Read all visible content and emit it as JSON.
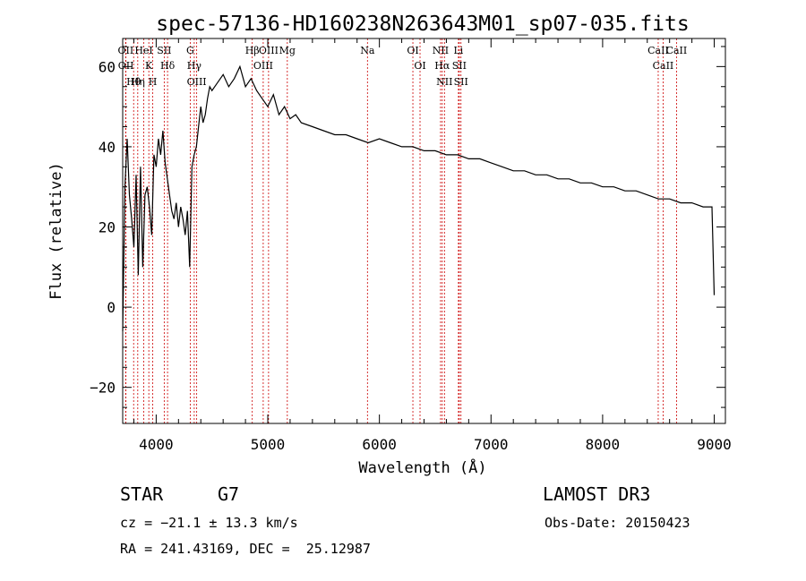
{
  "chart_data": {
    "type": "line",
    "title": "spec-57136-HD160238N263643M01_sp07-035.fits",
    "xlabel": "Wavelength (Å)",
    "ylabel": "Flux (relative)",
    "xlim": [
      3700,
      9100
    ],
    "ylim": [
      -29,
      67
    ],
    "x_ticks": [
      4000,
      5000,
      6000,
      7000,
      8000,
      9000
    ],
    "y_ticks": [
      -20,
      0,
      20,
      40,
      60
    ],
    "grid": false,
    "series_color": "#000000",
    "line_marker_color": "#cc0000",
    "series": [
      {
        "x": [
          3700,
          3720,
          3740,
          3760,
          3780,
          3800,
          3820,
          3840,
          3860,
          3880,
          3900,
          3920,
          3940,
          3960,
          3980,
          4000,
          4020,
          4040,
          4060,
          4080,
          4100,
          4120,
          4140,
          4160,
          4180,
          4200,
          4220,
          4240,
          4260,
          4280,
          4300,
          4320,
          4340,
          4360,
          4380,
          4400,
          4420,
          4440,
          4460,
          4480,
          4500,
          4550,
          4600,
          4650,
          4700,
          4750,
          4800,
          4850,
          4900,
          4950,
          5000,
          5050,
          5100,
          5150,
          5200,
          5250,
          5300,
          5400,
          5500,
          5600,
          5700,
          5800,
          5900,
          6000,
          6100,
          6200,
          6300,
          6400,
          6500,
          6600,
          6700,
          6800,
          6900,
          7000,
          7100,
          7200,
          7300,
          7400,
          7500,
          7600,
          7700,
          7800,
          7900,
          8000,
          8100,
          8200,
          8300,
          8400,
          8500,
          8600,
          8700,
          8800,
          8900,
          8980,
          9000
        ],
        "y": [
          -6,
          30,
          42,
          28,
          22,
          15,
          33,
          8,
          35,
          10,
          28,
          30,
          25,
          18,
          38,
          35,
          42,
          38,
          44,
          36,
          32,
          28,
          24,
          22,
          26,
          20,
          25,
          22,
          18,
          24,
          10,
          35,
          38,
          40,
          45,
          50,
          46,
          48,
          52,
          55,
          54,
          56,
          58,
          55,
          57,
          60,
          55,
          57,
          54,
          52,
          50,
          53,
          48,
          50,
          47,
          48,
          46,
          45,
          44,
          43,
          43,
          42,
          41,
          42,
          41,
          40,
          40,
          39,
          39,
          38,
          38,
          37,
          37,
          36,
          35,
          34,
          34,
          33,
          33,
          32,
          32,
          31,
          31,
          30,
          30,
          29,
          29,
          28,
          27,
          27,
          26,
          26,
          25,
          25,
          3
        ]
      }
    ],
    "line_markers": [
      {
        "label": "Hθ",
        "x": 3798
      },
      {
        "label": "OII",
        "x": 3727
      },
      {
        "label": "OII",
        "x": 3729
      },
      {
        "label": "K",
        "x": 3934
      },
      {
        "label": "HeI",
        "x": 3889
      },
      {
        "label": "Hη",
        "x": 3835
      },
      {
        "label": "H",
        "x": 3969
      },
      {
        "label": "SII",
        "x": 4072
      },
      {
        "label": "Hδ",
        "x": 4102
      },
      {
        "label": "OIII",
        "x": 4363
      },
      {
        "label": "Hγ",
        "x": 4341
      },
      {
        "label": "G",
        "x": 4305
      },
      {
        "label": "Hβ",
        "x": 4861
      },
      {
        "label": "OIII",
        "x": 4959
      },
      {
        "label": "OIII",
        "x": 5007
      },
      {
        "label": "Mg",
        "x": 5175
      },
      {
        "label": "Na",
        "x": 5893
      },
      {
        "label": "OI",
        "x": 6300
      },
      {
        "label": "OI",
        "x": 6364
      },
      {
        "label": "Hα",
        "x": 6563
      },
      {
        "label": "NII",
        "x": 6548
      },
      {
        "label": "NII",
        "x": 6583
      },
      {
        "label": "SII",
        "x": 6716
      },
      {
        "label": "SII",
        "x": 6731
      },
      {
        "label": "Li",
        "x": 6708
      },
      {
        "label": "CaII",
        "x": 8542
      },
      {
        "label": "CaII",
        "x": 8498
      },
      {
        "label": "CaII",
        "x": 8662
      }
    ]
  },
  "info": {
    "object_class": "STAR",
    "subclass": "G7",
    "survey": "LAMOST DR3",
    "cz": "cz = −21.1 ± 13.3 km/s",
    "obs_date": "Obs-Date: 20150423",
    "coords": "RA = 241.43169, DEC =  25.12987"
  }
}
